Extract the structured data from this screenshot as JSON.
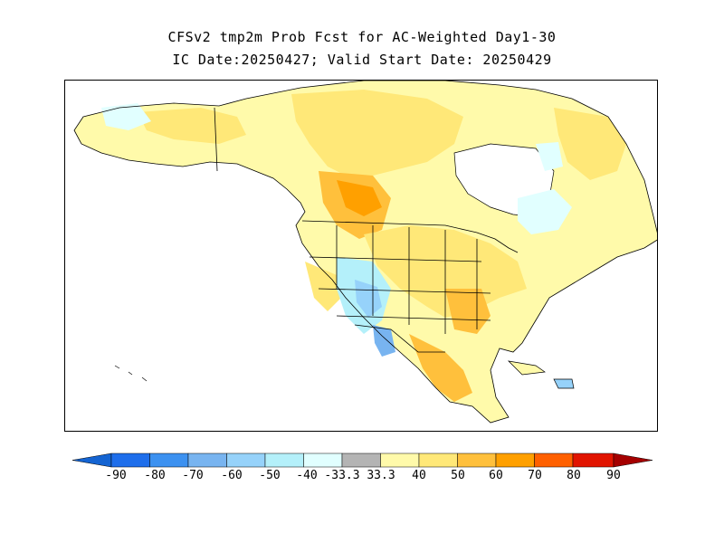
{
  "title": {
    "line1": "CFSv2 tmp2m Prob Fcst for AC-Weighted Day1-30",
    "line2": "IC Date:20250427; Valid Start Date: 20250429"
  },
  "colors": {
    "blue_90": "#1464d2",
    "blue_80": "#1e6eeb",
    "blue_70": "#3c91f0",
    "blue_60": "#78b4f0",
    "blue_50": "#96d2fa",
    "blue_40": "#b4f0fa",
    "blue_33": "#e1ffff",
    "neutral": "#b4b4b4",
    "warm_33": "#fffaaa",
    "warm_40": "#ffe878",
    "warm_50": "#ffc03c",
    "warm_60": "#ffa000",
    "warm_70": "#ff6000",
    "warm_80": "#e11400",
    "warm_90": "#a50000"
  },
  "colorbar": {
    "labels": [
      "-90",
      "-80",
      "-70",
      "-60",
      "-50",
      "-40",
      "-33.3",
      "33.3",
      "40",
      "50",
      "60",
      "70",
      "80",
      "90"
    ]
  }
}
